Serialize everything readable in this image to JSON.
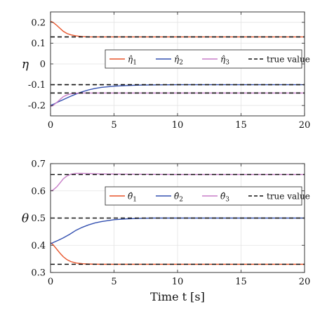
{
  "chart_data": [
    {
      "type": "line",
      "ylabel": "η",
      "xlabel": "",
      "xlim": [
        0,
        20
      ],
      "ylim": [
        -0.25,
        0.25
      ],
      "xticks": [
        0,
        5,
        10,
        15,
        20
      ],
      "yticks": [
        -0.2,
        -0.1,
        0,
        0.1,
        0.2
      ],
      "ytick_labels": [
        "-0.2",
        "-0.1",
        "0",
        "0.1",
        "0.2"
      ],
      "grid": true,
      "legend_position": "upper-right",
      "series": [
        {
          "name": "η̂",
          "subscript": "1",
          "color": "#e8542a",
          "style": "solid",
          "x": [
            0,
            0.2,
            0.5,
            0.8,
            1.0,
            1.3,
            1.6,
            2.0,
            2.5,
            3.0,
            4.0,
            6.0,
            10.0,
            15.0,
            20.0
          ],
          "y": [
            0.205,
            0.2,
            0.185,
            0.168,
            0.157,
            0.146,
            0.14,
            0.135,
            0.131,
            0.13,
            0.13,
            0.13,
            0.13,
            0.13,
            0.13
          ]
        },
        {
          "name": "η̂",
          "subscript": "2",
          "color": "#3350b0",
          "style": "solid",
          "x": [
            0,
            0.3,
            0.6,
            1.0,
            1.5,
            2.0,
            2.5,
            3.0,
            3.5,
            4.0,
            5.0,
            6.0,
            7.0,
            8.0,
            10.0,
            15.0,
            20.0
          ],
          "y": [
            -0.2,
            -0.192,
            -0.183,
            -0.172,
            -0.158,
            -0.145,
            -0.134,
            -0.125,
            -0.118,
            -0.113,
            -0.107,
            -0.104,
            -0.102,
            -0.101,
            -0.1,
            -0.1,
            -0.1
          ]
        },
        {
          "name": "η̂",
          "subscript": "3",
          "color": "#c77dc8",
          "style": "solid",
          "x": [
            0,
            0.2,
            0.5,
            0.8,
            1.0,
            1.3,
            1.6,
            2.0,
            2.5,
            3.0,
            4.0,
            6.0,
            10.0,
            15.0,
            20.0
          ],
          "y": [
            -0.205,
            -0.2,
            -0.185,
            -0.168,
            -0.158,
            -0.149,
            -0.144,
            -0.141,
            -0.14,
            -0.14,
            -0.14,
            -0.14,
            -0.14,
            -0.14,
            -0.14
          ]
        },
        {
          "name": "true value",
          "color": "#111111",
          "style": "dashed",
          "x": [
            0,
            20
          ],
          "y": [
            0.13,
            0.13
          ]
        },
        {
          "name": "true value",
          "color": "#111111",
          "style": "dashed",
          "x": [
            0,
            20
          ],
          "y": [
            -0.1,
            -0.1
          ]
        },
        {
          "name": "true value",
          "color": "#111111",
          "style": "dashed",
          "x": [
            0,
            20
          ],
          "y": [
            -0.14,
            -0.14
          ]
        }
      ]
    },
    {
      "type": "line",
      "ylabel": "θ",
      "xlabel": "Time t [s]",
      "xlim": [
        0,
        20
      ],
      "ylim": [
        0.3,
        0.7
      ],
      "xticks": [
        0,
        5,
        10,
        15,
        20
      ],
      "yticks": [
        0.3,
        0.4,
        0.5,
        0.6,
        0.7
      ],
      "ytick_labels": [
        "0.3",
        "0.4",
        "0.5",
        "0.6",
        "0.7"
      ],
      "grid": true,
      "legend_position": "upper-right",
      "series": [
        {
          "name": "θ̂",
          "subscript": "1",
          "color": "#e8542a",
          "style": "solid",
          "x": [
            0,
            0.2,
            0.5,
            0.8,
            1.0,
            1.3,
            1.6,
            2.0,
            2.5,
            3.0,
            4.0,
            6.0,
            10.0,
            15.0,
            20.0
          ],
          "y": [
            0.41,
            0.402,
            0.385,
            0.368,
            0.358,
            0.347,
            0.34,
            0.335,
            0.332,
            0.331,
            0.33,
            0.33,
            0.33,
            0.33,
            0.33
          ]
        },
        {
          "name": "θ̂",
          "subscript": "2",
          "color": "#3350b0",
          "style": "solid",
          "x": [
            0,
            0.3,
            0.6,
            1.0,
            1.5,
            2.0,
            2.5,
            3.0,
            3.5,
            4.0,
            5.0,
            6.0,
            7.0,
            8.0,
            10.0,
            15.0,
            20.0
          ],
          "y": [
            0.405,
            0.412,
            0.418,
            0.427,
            0.44,
            0.455,
            0.466,
            0.475,
            0.482,
            0.487,
            0.494,
            0.497,
            0.499,
            0.5,
            0.5,
            0.5,
            0.5
          ]
        },
        {
          "name": "θ̂",
          "subscript": "3",
          "color": "#c77dc8",
          "style": "solid",
          "x": [
            0,
            0.2,
            0.5,
            0.8,
            1.0,
            1.3,
            1.6,
            2.0,
            2.5,
            3.0,
            4.0,
            6.0,
            10.0,
            15.0,
            20.0
          ],
          "y": [
            0.6,
            0.603,
            0.615,
            0.632,
            0.644,
            0.655,
            0.661,
            0.664,
            0.664,
            0.663,
            0.662,
            0.661,
            0.66,
            0.66,
            0.66
          ]
        },
        {
          "name": "true value",
          "color": "#111111",
          "style": "dashed",
          "x": [
            0,
            20
          ],
          "y": [
            0.66,
            0.66
          ]
        },
        {
          "name": "true value",
          "color": "#111111",
          "style": "dashed",
          "x": [
            0,
            20
          ],
          "y": [
            0.5,
            0.5
          ]
        },
        {
          "name": "true value",
          "color": "#111111",
          "style": "dashed",
          "x": [
            0,
            20
          ],
          "y": [
            0.33,
            0.33
          ]
        }
      ]
    }
  ]
}
